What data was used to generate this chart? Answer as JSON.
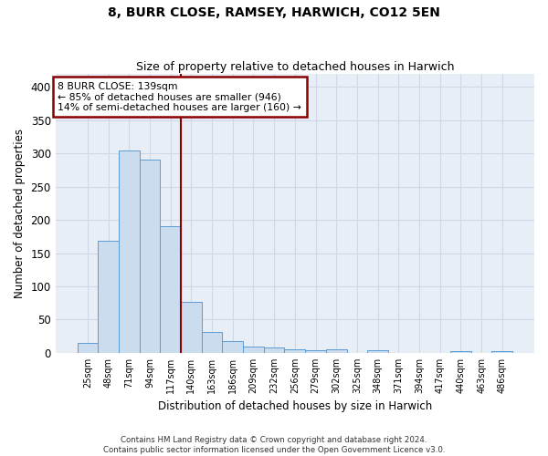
{
  "title": "8, BURR CLOSE, RAMSEY, HARWICH, CO12 5EN",
  "subtitle": "Size of property relative to detached houses in Harwich",
  "xlabel": "Distribution of detached houses by size in Harwich",
  "ylabel": "Number of detached properties",
  "footer_line1": "Contains HM Land Registry data © Crown copyright and database right 2024.",
  "footer_line2": "Contains public sector information licensed under the Open Government Licence v3.0.",
  "annotation_line1": "8 BURR CLOSE: 139sqm",
  "annotation_line2": "← 85% of detached houses are smaller (946)",
  "annotation_line3": "14% of semi-detached houses are larger (160) →",
  "bar_color": "#ccdcef",
  "bar_edge_color": "#5b9bd5",
  "vline_color": "#8b0000",
  "annotation_box_edge_color": "#8b0000",
  "grid_color": "#d0d8e8",
  "background_color": "#e8eef5",
  "categories": [
    "25sqm",
    "48sqm",
    "71sqm",
    "94sqm",
    "117sqm",
    "140sqm",
    "163sqm",
    "186sqm",
    "209sqm",
    "232sqm",
    "256sqm",
    "279sqm",
    "302sqm",
    "325sqm",
    "348sqm",
    "371sqm",
    "394sqm",
    "417sqm",
    "440sqm",
    "463sqm",
    "486sqm"
  ],
  "values": [
    15,
    168,
    305,
    290,
    191,
    77,
    31,
    18,
    9,
    8,
    6,
    4,
    5,
    0,
    4,
    0,
    0,
    0,
    2,
    0,
    2
  ],
  "ylim": [
    0,
    420
  ],
  "vline_x_index": 4.5,
  "figsize": [
    6.0,
    5.0
  ],
  "dpi": 100
}
